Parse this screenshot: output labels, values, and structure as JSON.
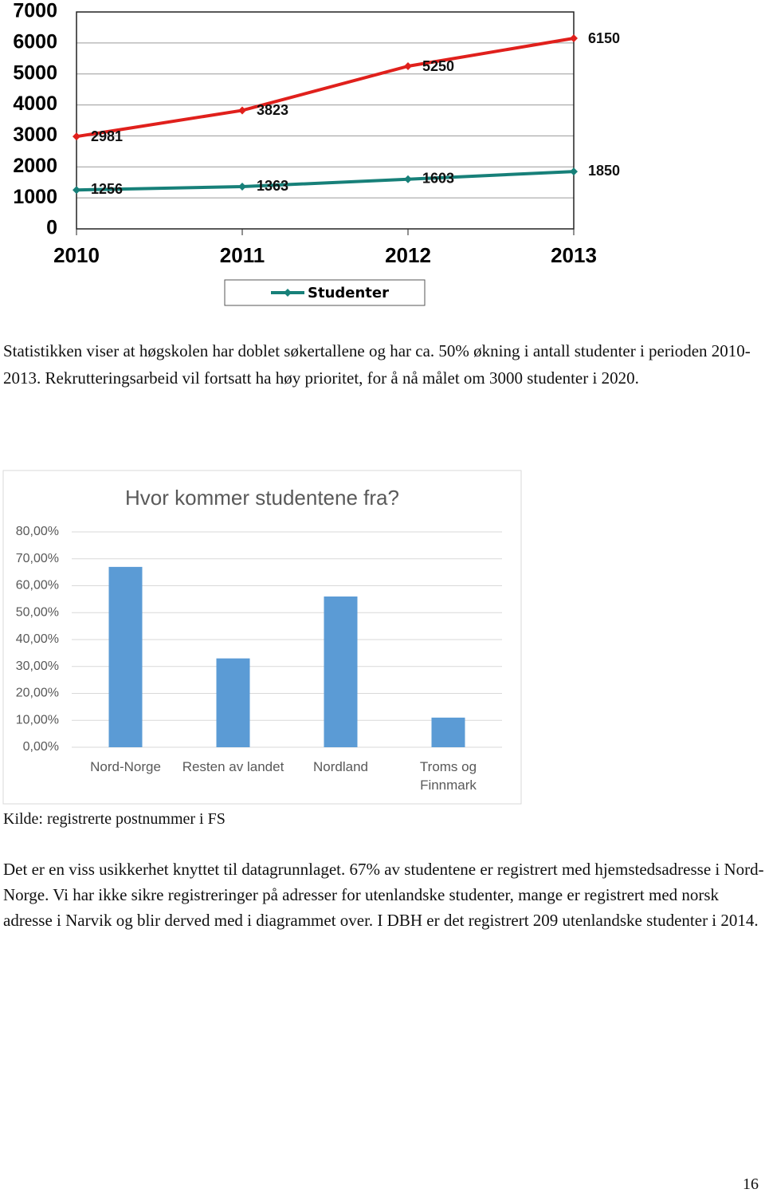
{
  "chart_data": [
    {
      "type": "line",
      "categories": [
        "2010",
        "2011",
        "2012",
        "2013"
      ],
      "ylim": [
        0,
        7000
      ],
      "yticks": [
        0,
        1000,
        2000,
        3000,
        4000,
        5000,
        6000,
        7000
      ],
      "grid": true,
      "series": [
        {
          "color": "#e0201c",
          "values": [
            2981,
            3823,
            5250,
            6150
          ]
        },
        {
          "name": "Studenter",
          "color": "#178079",
          "values": [
            1256,
            1363,
            1603,
            1850
          ]
        }
      ]
    },
    {
      "type": "bar",
      "title": "Hvor kommer studentene fra?",
      "categories": [
        "Nord-Norge",
        "Resten av landet",
        "Nordland",
        "Troms og Finnmark"
      ],
      "values": [
        67,
        33,
        56,
        11
      ],
      "color": "#5b9bd5",
      "ylim": [
        0,
        80
      ],
      "yticks": [
        {
          "value": 0,
          "label": "0,00%"
        },
        {
          "value": 10,
          "label": "10,00%"
        },
        {
          "value": 20,
          "label": "20,00%"
        },
        {
          "value": 30,
          "label": "30,00%"
        },
        {
          "value": 40,
          "label": "40,00%"
        },
        {
          "value": 50,
          "label": "50,00%"
        },
        {
          "value": 60,
          "label": "60,00%"
        },
        {
          "value": 70,
          "label": "70,00%"
        },
        {
          "value": 80,
          "label": "80,00%"
        }
      ],
      "grid": true
    }
  ],
  "paragraphs": [
    "Statistikken viser at høgskolen har doblet søkertallene og har ca. 50% økning i antall studenter i perioden 2010-2013. Rekrutteringsarbeid vil fortsatt ha høy prioritet, for å nå målet om 3000 studenter i 2020.",
    "Det er en viss usikkerhet knyttet til datagrunnlaget. 67% av studentene er registrert med hjemstedsadresse i Nord-Norge. Vi har ikke sikre registreringer på adresser for utenlandske studenter, mange er registrert med norsk adresse i Narvik og blir derved med i diagrammet over. I DBH er det registrert 209 utenlandske studenter i 2014."
  ],
  "source": "Kilde: registrerte postnummer i FS",
  "page_number": "16"
}
